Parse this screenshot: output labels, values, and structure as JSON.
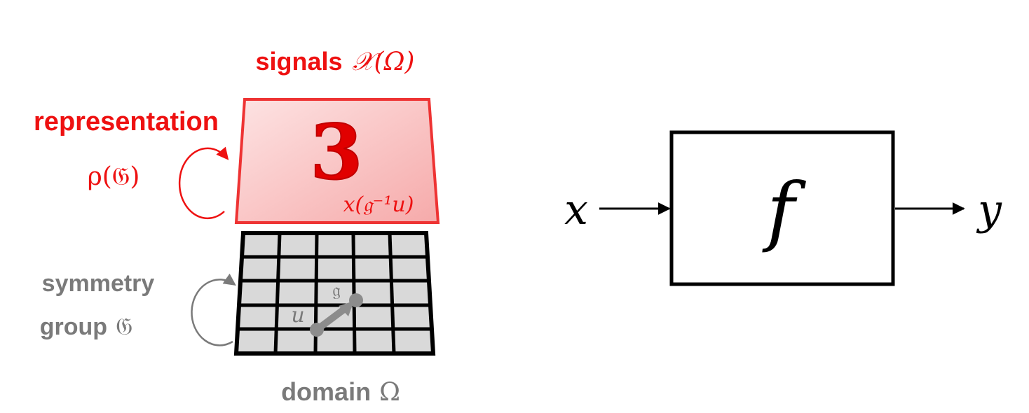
{
  "labels": {
    "signals_word": "signals",
    "signals_symbol": "𝒳(Ω)",
    "representation": "representation",
    "rho": "ρ(𝔊)",
    "digit": "3",
    "transformed_signal": "x(𝔤⁻¹u)",
    "symmetry": "symmetry",
    "group_word": "group",
    "group_symbol": "𝔊",
    "u_point": "u",
    "g_label": "𝔤",
    "domain_word": "domain",
    "domain_symbol": "Ω",
    "function_name": "f",
    "input_var": "x",
    "output_var": "y"
  },
  "colors": {
    "red": "#ee1111",
    "gray": "#7a7a7a",
    "signal_fill": "#f8b8b8",
    "cell_fill": "#d9d9d9",
    "black": "#000000"
  }
}
